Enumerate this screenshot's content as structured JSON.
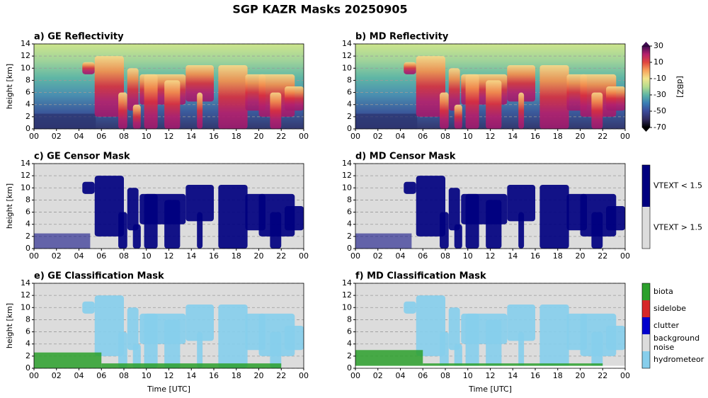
{
  "title": "SGP KAZR Masks 20250905",
  "chart_data": [
    {
      "type": "heatmap",
      "title": "a) GE Reflectivity",
      "ylabel": "height [km]",
      "xlim": [
        0,
        24
      ],
      "xticks": [
        {
          "value": 0,
          "label": "00"
        },
        {
          "value": 2,
          "label": "02"
        },
        {
          "value": 4,
          "label": "04"
        },
        {
          "value": 6,
          "label": "06"
        },
        {
          "value": 8,
          "label": "08"
        },
        10,
        12,
        14,
        16,
        18,
        20,
        22,
        {
          "value": 24,
          "label": "00"
        }
      ],
      "ylim": [
        0,
        14
      ],
      "yticks": [
        0,
        2,
        4,
        6,
        8,
        10,
        12,
        14
      ],
      "grid": true
    },
    {
      "type": "heatmap",
      "title": "b) MD Reflectivity",
      "xlim": [
        0,
        24
      ],
      "xticks": [
        {
          "value": 0,
          "label": "00"
        },
        {
          "value": 2,
          "label": "02"
        },
        {
          "value": 4,
          "label": "04"
        },
        {
          "value": 6,
          "label": "06"
        },
        {
          "value": 8,
          "label": "08"
        },
        10,
        12,
        14,
        16,
        18,
        20,
        22,
        {
          "value": 24,
          "label": "00"
        }
      ],
      "ylim": [
        0,
        14
      ],
      "yticks": [
        0,
        2,
        4,
        6,
        8,
        10,
        12,
        14
      ],
      "grid": true
    },
    {
      "type": "heatmap",
      "title": "c) GE Censor Mask",
      "ylabel": "height [km]",
      "xlim": [
        0,
        24
      ],
      "xticks": [
        {
          "value": 0,
          "label": "00"
        },
        {
          "value": 2,
          "label": "02"
        },
        {
          "value": 4,
          "label": "04"
        },
        {
          "value": 6,
          "label": "06"
        },
        {
          "value": 8,
          "label": "08"
        },
        10,
        12,
        14,
        16,
        18,
        20,
        22,
        {
          "value": 24,
          "label": "00"
        }
      ],
      "ylim": [
        0,
        14
      ],
      "yticks": [
        0,
        2,
        4,
        6,
        8,
        10,
        12,
        14
      ],
      "grid": true
    },
    {
      "type": "heatmap",
      "title": "d) MD Censor Mask",
      "xlim": [
        0,
        24
      ],
      "xticks": [
        {
          "value": 0,
          "label": "00"
        },
        {
          "value": 2,
          "label": "02"
        },
        {
          "value": 4,
          "label": "04"
        },
        {
          "value": 6,
          "label": "06"
        },
        {
          "value": 8,
          "label": "08"
        },
        10,
        12,
        14,
        16,
        18,
        20,
        22,
        {
          "value": 24,
          "label": "00"
        }
      ],
      "ylim": [
        0,
        14
      ],
      "yticks": [
        0,
        2,
        4,
        6,
        8,
        10,
        12,
        14
      ],
      "grid": true
    },
    {
      "type": "heatmap",
      "title": "e) GE Classification Mask",
      "ylabel": "height [km]",
      "xlabel": "Time [UTC]",
      "xlim": [
        0,
        24
      ],
      "xticks": [
        {
          "value": 0,
          "label": "00"
        },
        {
          "value": 2,
          "label": "02"
        },
        {
          "value": 4,
          "label": "04"
        },
        {
          "value": 6,
          "label": "06"
        },
        {
          "value": 8,
          "label": "08"
        },
        10,
        12,
        14,
        16,
        18,
        20,
        22,
        {
          "value": 24,
          "label": "00"
        }
      ],
      "ylim": [
        0,
        14
      ],
      "yticks": [
        0,
        2,
        4,
        6,
        8,
        10,
        12,
        14
      ],
      "grid": true
    },
    {
      "type": "heatmap",
      "title": "f) MD Classification Mask",
      "xlabel": "Time [UTC]",
      "xlim": [
        0,
        24
      ],
      "xticks": [
        {
          "value": 0,
          "label": "00"
        },
        {
          "value": 2,
          "label": "02"
        },
        {
          "value": 4,
          "label": "04"
        },
        {
          "value": 6,
          "label": "06"
        },
        {
          "value": 8,
          "label": "08"
        },
        10,
        12,
        14,
        16,
        18,
        20,
        22,
        {
          "value": 24,
          "label": "00"
        }
      ],
      "ylim": [
        0,
        14
      ],
      "yticks": [
        0,
        2,
        4,
        6,
        8,
        10,
        12,
        14
      ],
      "grid": true
    }
  ],
  "colorbars": [
    {
      "type": "continuous",
      "label": "[dBZ]",
      "ylim": [
        -70,
        30
      ],
      "yticks": [
        -70,
        -50,
        -30,
        -10,
        10,
        30
      ],
      "colors": [
        "#3f0b51",
        "#b4206c",
        "#e0463f",
        "#f7a35c",
        "#f2e58c",
        "#b5dc8f",
        "#5fb6a5",
        "#3a7fb5",
        "#3b4a9a",
        "#302a5f",
        "#000000"
      ]
    },
    {
      "type": "categorical",
      "categories": [
        "VTEXT < 1.5",
        "VTEXT > 1.5"
      ],
      "colors": [
        "#00007f",
        "#dcdcdc"
      ]
    },
    {
      "type": "categorical",
      "categories": [
        "biota",
        "sidelobe",
        "clutter",
        "background\nnoise",
        "hydrometeor"
      ],
      "colors": [
        "#2ca02c",
        "#d62728",
        "#0000cd",
        "#dcdcdc",
        "#87ceeb"
      ]
    }
  ]
}
